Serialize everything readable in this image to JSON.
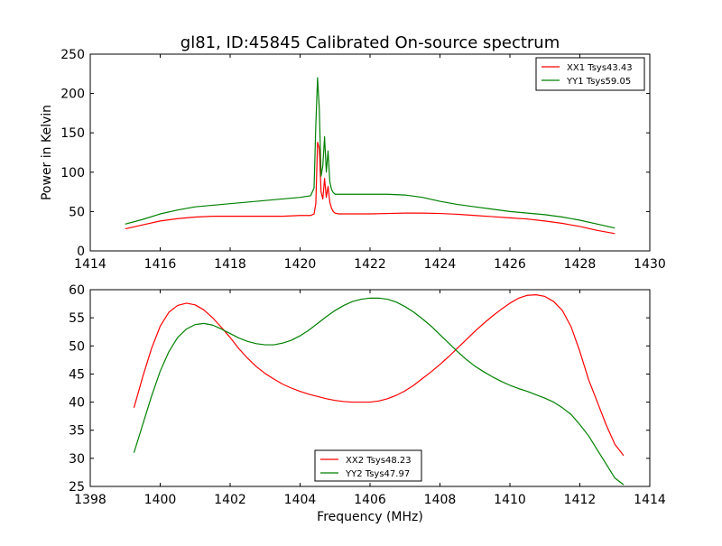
{
  "figure": {
    "title": "gl81, ID:45845 Calibrated On-source spectrum",
    "ylabel": "Power in Kelvin",
    "xlabel": "Frequency (MHz)"
  },
  "chart_data": [
    {
      "type": "line",
      "title": "gl81, ID:45845 Calibrated On-source spectrum",
      "xlabel": "",
      "ylabel": "Power in Kelvin",
      "xlim": [
        1414,
        1430
      ],
      "ylim": [
        0,
        250
      ],
      "xticks": [
        1414,
        1416,
        1418,
        1420,
        1422,
        1424,
        1426,
        1428,
        1430
      ],
      "yticks": [
        0,
        50,
        100,
        150,
        200,
        250
      ],
      "grid": false,
      "legend_position": "top-right",
      "series": [
        {
          "name": "XX1 Tsys43.43",
          "color": "#ff0000",
          "x": [
            1415.0,
            1415.5,
            1416.0,
            1416.5,
            1417.0,
            1417.5,
            1418.0,
            1418.5,
            1419.0,
            1419.5,
            1420.0,
            1420.3,
            1420.4,
            1420.45,
            1420.5,
            1420.55,
            1420.6,
            1420.65,
            1420.7,
            1420.75,
            1420.8,
            1420.85,
            1420.9,
            1420.95,
            1421.0,
            1421.1,
            1421.3,
            1421.5,
            1422.0,
            1422.5,
            1423.0,
            1423.5,
            1424.0,
            1424.5,
            1425.0,
            1425.5,
            1426.0,
            1426.5,
            1427.0,
            1427.5,
            1428.0,
            1428.5,
            1429.0
          ],
          "y": [
            28,
            33,
            38,
            41,
            43,
            44,
            44,
            44,
            44,
            44,
            45,
            45,
            47,
            60,
            138,
            130,
            75,
            66,
            92,
            68,
            82,
            62,
            54,
            50,
            48,
            47,
            47,
            47,
            47,
            47.5,
            48,
            48,
            47.5,
            46.5,
            45,
            43.5,
            42,
            40.5,
            38,
            35,
            31,
            26,
            22
          ]
        },
        {
          "name": "YY1 Tsys59.05",
          "color": "#008000",
          "x": [
            1415.0,
            1415.5,
            1416.0,
            1416.5,
            1417.0,
            1417.5,
            1418.0,
            1418.5,
            1419.0,
            1419.5,
            1420.0,
            1420.3,
            1420.4,
            1420.45,
            1420.5,
            1420.55,
            1420.6,
            1420.65,
            1420.7,
            1420.75,
            1420.8,
            1420.85,
            1420.9,
            1420.95,
            1421.0,
            1421.1,
            1421.3,
            1421.5,
            1422.0,
            1422.5,
            1423.0,
            1423.5,
            1424.0,
            1424.5,
            1425.0,
            1425.5,
            1426.0,
            1426.5,
            1427.0,
            1427.5,
            1428.0,
            1428.5,
            1429.0
          ],
          "y": [
            34,
            40,
            47,
            52,
            56,
            58,
            60,
            62,
            64,
            66,
            68,
            70,
            80,
            160,
            220,
            180,
            95,
            108,
            145,
            100,
            127,
            88,
            78,
            74,
            72,
            72,
            72,
            72,
            72,
            72,
            71,
            68,
            63,
            59,
            56,
            53,
            50,
            48,
            46,
            43,
            39,
            34,
            29
          ]
        }
      ]
    },
    {
      "type": "line",
      "title": "",
      "xlabel": "Frequency (MHz)",
      "ylabel": "",
      "xlim": [
        1398,
        1414
      ],
      "ylim": [
        25,
        60
      ],
      "xticks": [
        1398,
        1400,
        1402,
        1404,
        1406,
        1408,
        1410,
        1412,
        1414
      ],
      "yticks": [
        25,
        30,
        35,
        40,
        45,
        50,
        55,
        60
      ],
      "grid": false,
      "legend_position": "bottom-center",
      "series": [
        {
          "name": "XX2 Tsys48.23",
          "color": "#ff0000",
          "x": [
            1399.25,
            1399.5,
            1399.75,
            1400.0,
            1400.25,
            1400.5,
            1400.75,
            1401.0,
            1401.25,
            1401.5,
            1401.75,
            1402.0,
            1402.25,
            1402.5,
            1402.75,
            1403.0,
            1403.25,
            1403.5,
            1403.75,
            1404.0,
            1404.25,
            1404.5,
            1404.75,
            1405.0,
            1405.25,
            1405.5,
            1405.75,
            1406.0,
            1406.25,
            1406.5,
            1406.75,
            1407.0,
            1407.25,
            1407.5,
            1407.75,
            1408.0,
            1408.25,
            1408.5,
            1408.75,
            1409.0,
            1409.25,
            1409.5,
            1409.75,
            1410.0,
            1410.25,
            1410.5,
            1410.75,
            1411.0,
            1411.25,
            1411.5,
            1411.75,
            1412.0,
            1412.25,
            1412.5,
            1412.75,
            1413.0,
            1413.25
          ],
          "y": [
            39,
            44.5,
            49.5,
            53.5,
            56,
            57.2,
            57.6,
            57.3,
            56.4,
            55,
            53.3,
            51.5,
            49.5,
            47.8,
            46.3,
            45.1,
            44.1,
            43.2,
            42.5,
            41.9,
            41.4,
            41,
            40.6,
            40.3,
            40.1,
            40,
            40,
            40,
            40.2,
            40.6,
            41.2,
            42,
            43,
            44.2,
            45.4,
            46.7,
            48.1,
            49.6,
            51.1,
            52.6,
            54,
            55.3,
            56.5,
            57.6,
            58.5,
            59,
            59.1,
            58.8,
            57.9,
            56.3,
            53.4,
            49,
            44,
            40,
            36,
            32.5,
            30.5
          ]
        },
        {
          "name": "YY2 Tsys47.97",
          "color": "#008000",
          "x": [
            1399.25,
            1399.5,
            1399.75,
            1400.0,
            1400.25,
            1400.5,
            1400.75,
            1401.0,
            1401.25,
            1401.5,
            1401.75,
            1402.0,
            1402.25,
            1402.5,
            1402.75,
            1403.0,
            1403.25,
            1403.5,
            1403.75,
            1404.0,
            1404.25,
            1404.5,
            1404.75,
            1405.0,
            1405.25,
            1405.5,
            1405.75,
            1406.0,
            1406.25,
            1406.5,
            1406.75,
            1407.0,
            1407.25,
            1407.5,
            1407.75,
            1408.0,
            1408.25,
            1408.5,
            1408.75,
            1409.0,
            1409.25,
            1409.5,
            1409.75,
            1410.0,
            1410.25,
            1410.5,
            1410.75,
            1411.0,
            1411.25,
            1411.5,
            1411.75,
            1412.0,
            1412.25,
            1412.5,
            1412.75,
            1413.0,
            1413.25
          ],
          "y": [
            31,
            36,
            41,
            45.5,
            49,
            51.5,
            53,
            53.8,
            54,
            53.7,
            53,
            52.2,
            51.4,
            50.8,
            50.4,
            50.2,
            50.2,
            50.5,
            51,
            51.8,
            52.8,
            54,
            55.2,
            56.3,
            57.2,
            57.9,
            58.3,
            58.5,
            58.5,
            58.3,
            57.8,
            57,
            56,
            54.8,
            53.5,
            52,
            50.5,
            49,
            47.6,
            46.4,
            45.4,
            44.5,
            43.7,
            43,
            42.4,
            41.9,
            41.3,
            40.7,
            40,
            39,
            37.8,
            36,
            34,
            31.5,
            29,
            26.5,
            25.3
          ]
        }
      ]
    }
  ]
}
